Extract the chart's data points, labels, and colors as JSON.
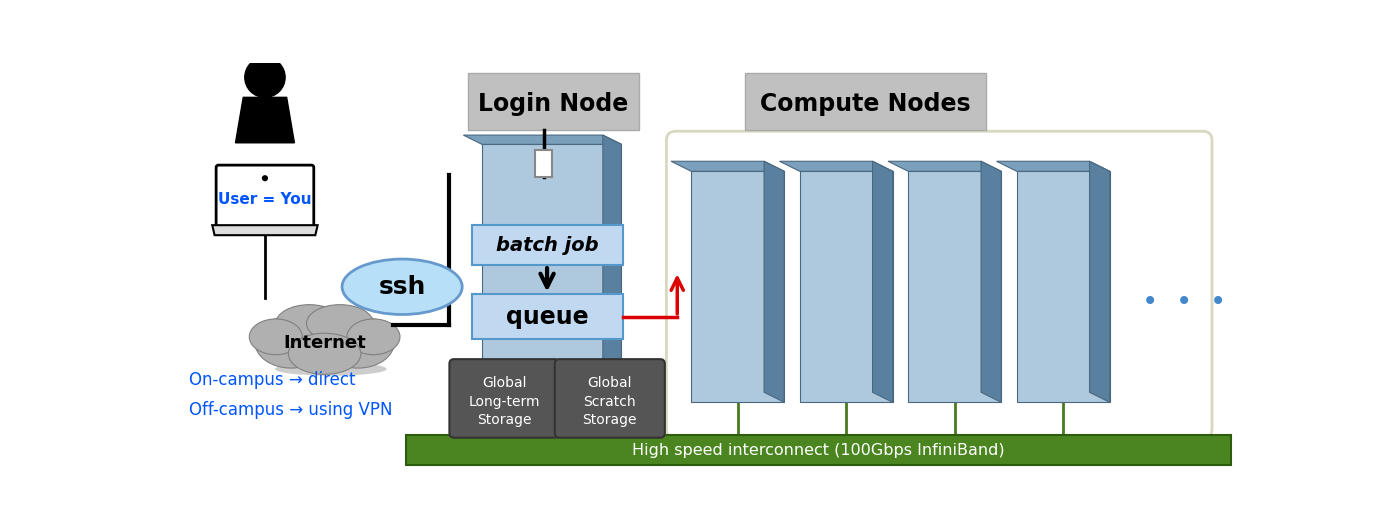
{
  "bg_color": "#ffffff",
  "login_node_label": "Login Node",
  "compute_nodes_label": "Compute Nodes",
  "batch_job_label": "batch job",
  "queue_label": "queue",
  "ssh_label": "ssh",
  "internet_label": "Internet",
  "user_label": "User = You",
  "storage1_label": "Global\nLong-term\nStorage",
  "storage2_label": "Global\nScratch\nStorage",
  "interconnect_label": "High speed interconnect (100Gbps InfiniBand)",
  "oncampus_label": "On-campus → direct\nOff-campus → using VPN",
  "color_blue": "#0055ff",
  "color_light_blue_box": "#c0d8f0",
  "color_gray_label": "#c0c0c0",
  "color_dark_gray_storage": "#555555",
  "color_green_bar": "#4a8520",
  "color_green_line": "#4a7a20",
  "color_3d_front": "#aec8de",
  "color_3d_top": "#7aa0bc",
  "color_3d_side": "#5a80a0",
  "color_ssh_fill": "#b8dff8",
  "color_red": "#dd0000",
  "color_cloud_fill": "#b0b0b0",
  "color_cloud_edge": "#808080",
  "color_compute_border": "#e8e8d8",
  "color_black": "#000000",
  "color_white": "#ffffff"
}
